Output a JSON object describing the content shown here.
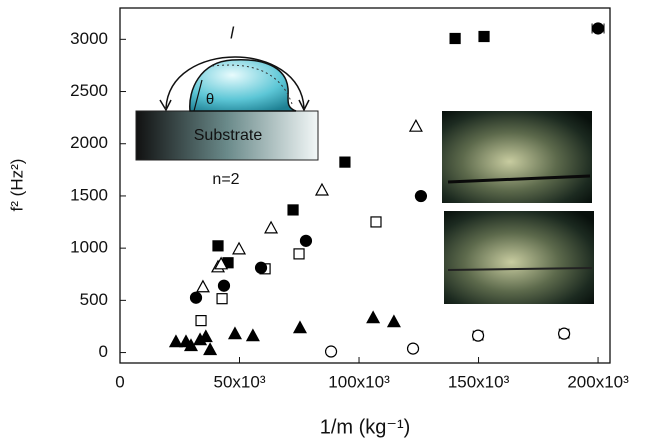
{
  "chart_data": {
    "type": "scatter",
    "ylabel": "f² (Hz²)",
    "xlabel": "1/m  (kg⁻¹)",
    "xlim": [
      0,
      205000
    ],
    "ylim": [
      -100,
      3300
    ],
    "xticks": [
      0,
      {
        "value": 50000,
        "label": "50x10³"
      },
      {
        "value": 100000,
        "label": "100x10³"
      },
      {
        "value": 150000,
        "label": "150x10³"
      },
      {
        "value": 200000,
        "label": "200x10³"
      }
    ],
    "yticks": [
      0,
      500,
      1000,
      1500,
      2000,
      2500,
      3000
    ],
    "annotations": [
      "l",
      "θ",
      "Substrate",
      "n=2"
    ],
    "series": [
      {
        "marker": "square",
        "filled": true,
        "color": "#000000",
        "x": [
          41000,
          45200,
          72400,
          94100,
          140200,
          152300
        ],
        "values": [
          1022,
          860,
          1366,
          1824,
          3008,
          3027
        ]
      },
      {
        "marker": "square",
        "filled": false,
        "color": "#000000",
        "x": [
          33900,
          42700,
          60700,
          74900,
          107100
        ],
        "values": [
          306,
          516,
          802,
          945,
          1251
        ]
      },
      {
        "marker": "circle",
        "filled": true,
        "color": "#000000",
        "x": [
          31800,
          43500,
          59000,
          77800,
          125900,
          200000
        ],
        "values": [
          525,
          640,
          812,
          1070,
          1499,
          3104
        ],
        "xerr": [
          null,
          null,
          null,
          null,
          null,
          2500
        ]
      },
      {
        "marker": "circle",
        "filled": false,
        "color": "#000000",
        "x": [
          88300,
          122600,
          149800,
          185800
        ],
        "values": [
          10,
          38,
          162,
          181
        ],
        "xerr": [
          null,
          null,
          2000,
          2000
        ]
      },
      {
        "marker": "triangle",
        "filled": false,
        "color": "#000000",
        "x": [
          34700,
          41000,
          42300,
          49800,
          63200,
          84500,
          123800
        ],
        "values": [
          630,
          821,
          850,
          993,
          1194,
          1557,
          2168
        ]
      },
      {
        "marker": "triangle",
        "filled": true,
        "color": "#000000",
        "x": [
          23400,
          27600,
          29700,
          33500,
          37700,
          35900,
          48100,
          55600,
          75300,
          105900,
          114600
        ],
        "values": [
          105,
          105,
          67,
          124,
          29,
          153,
          181,
          162,
          239,
          334,
          296
        ]
      }
    ]
  }
}
